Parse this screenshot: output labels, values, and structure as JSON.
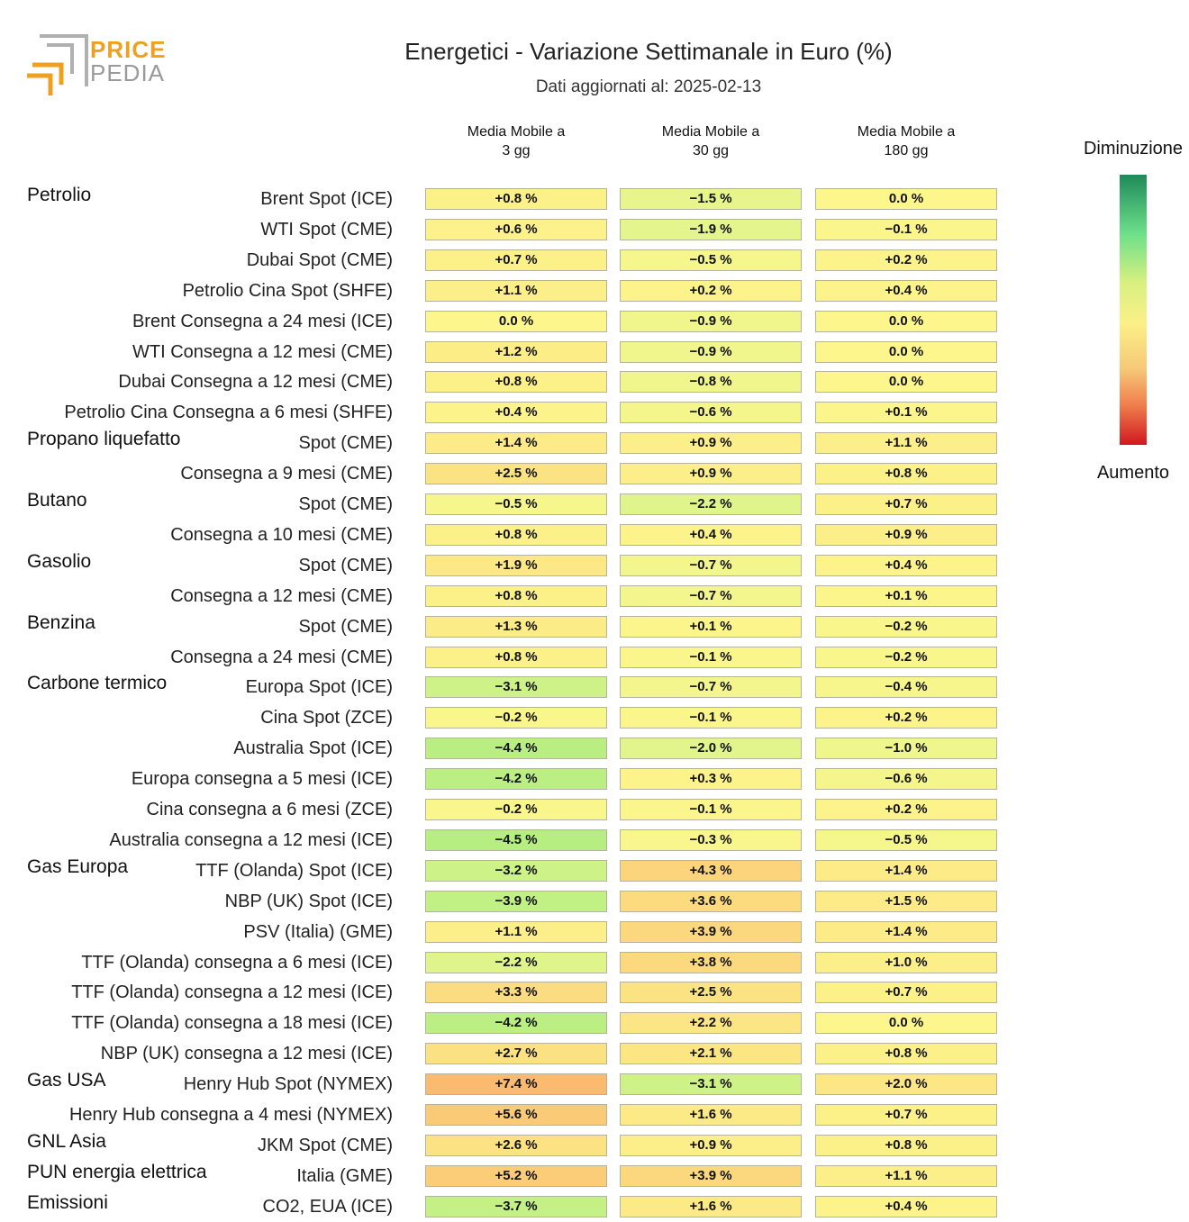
{
  "brand": {
    "line1": "PRICE",
    "line2": "PEDIA"
  },
  "header": {
    "title": "Energetici - Variazione Settimanale in Euro (%)",
    "subtitle": "Dati aggiornati al: 2025-02-13"
  },
  "columns": [
    "Media Mobile a\n3 gg",
    "Media Mobile a\n30 gg",
    "Media Mobile a\n180 gg"
  ],
  "legend": {
    "top": "Diminuzione",
    "bottom": "Aumento"
  },
  "colors": {
    "decrease_strong": "#1e8a5a",
    "neutral": "#fbf088",
    "increase_strong": "#d01820"
  },
  "chart_data": {
    "type": "heatmap",
    "title": "Energetici - Variazione Settimanale in Euro (%)",
    "unit": "%",
    "columns": [
      "Media Mobile a 3 gg",
      "Media Mobile a 30 gg",
      "Media Mobile a 180 gg"
    ],
    "rows": [
      {
        "group": "Petrolio",
        "label": "Brent Spot (ICE)",
        "values": [
          0.8,
          -1.5,
          0.0
        ]
      },
      {
        "group": "",
        "label": "WTI Spot (CME)",
        "values": [
          0.6,
          -1.9,
          -0.1
        ]
      },
      {
        "group": "",
        "label": "Dubai Spot (CME)",
        "values": [
          0.7,
          -0.5,
          0.2
        ]
      },
      {
        "group": "",
        "label": "Petrolio Cina Spot (SHFE)",
        "values": [
          1.1,
          0.2,
          0.4
        ]
      },
      {
        "group": "",
        "label": "Brent Consegna a 24 mesi (ICE)",
        "values": [
          0.0,
          -0.9,
          0.0
        ]
      },
      {
        "group": "",
        "label": "WTI Consegna a 12 mesi (CME)",
        "values": [
          1.2,
          -0.9,
          0.0
        ]
      },
      {
        "group": "",
        "label": "Dubai Consegna a 12 mesi (CME)",
        "values": [
          0.8,
          -0.8,
          0.0
        ]
      },
      {
        "group": "",
        "label": "Petrolio Cina Consegna a 6 mesi (SHFE)",
        "values": [
          0.4,
          -0.6,
          0.1
        ]
      },
      {
        "group": "Propano liquefatto",
        "label": "Spot (CME)",
        "values": [
          1.4,
          0.9,
          1.1
        ]
      },
      {
        "group": "",
        "label": "Consegna a 9 mesi (CME)",
        "values": [
          2.5,
          0.9,
          0.8
        ]
      },
      {
        "group": "Butano",
        "label": "Spot (CME)",
        "values": [
          -0.5,
          -2.2,
          0.7
        ]
      },
      {
        "group": "",
        "label": "Consegna a 10 mesi (CME)",
        "values": [
          0.8,
          0.4,
          0.9
        ]
      },
      {
        "group": "Gasolio",
        "label": "Spot (CME)",
        "values": [
          1.9,
          -0.7,
          0.4
        ]
      },
      {
        "group": "",
        "label": "Consegna a 12 mesi (CME)",
        "values": [
          0.8,
          -0.7,
          0.1
        ]
      },
      {
        "group": "Benzina",
        "label": "Spot (CME)",
        "values": [
          1.3,
          0.1,
          -0.2
        ]
      },
      {
        "group": "",
        "label": "Consegna a 24 mesi (CME)",
        "values": [
          0.8,
          -0.1,
          -0.2
        ]
      },
      {
        "group": "Carbone termico",
        "label": "Europa Spot (ICE)",
        "values": [
          -3.1,
          -0.7,
          -0.4
        ]
      },
      {
        "group": "",
        "label": "Cina Spot (ZCE)",
        "values": [
          -0.2,
          -0.1,
          0.2
        ]
      },
      {
        "group": "",
        "label": "Australia Spot (ICE)",
        "values": [
          -4.4,
          -2.0,
          -1.0
        ]
      },
      {
        "group": "",
        "label": "Europa consegna a 5 mesi (ICE)",
        "values": [
          -4.2,
          0.3,
          -0.6
        ]
      },
      {
        "group": "",
        "label": "Cina consegna a 6 mesi (ZCE)",
        "values": [
          -0.2,
          -0.1,
          0.2
        ]
      },
      {
        "group": "",
        "label": "Australia consegna a 12 mesi (ICE)",
        "values": [
          -4.5,
          -0.3,
          -0.5
        ]
      },
      {
        "group": "Gas Europa",
        "label": "TTF (Olanda) Spot (ICE)",
        "values": [
          -3.2,
          4.3,
          1.4
        ]
      },
      {
        "group": "",
        "label": "NBP (UK) Spot (ICE)",
        "values": [
          -3.9,
          3.6,
          1.5
        ]
      },
      {
        "group": "",
        "label": "PSV (Italia) (GME)",
        "values": [
          1.1,
          3.9,
          1.4
        ]
      },
      {
        "group": "",
        "label": "TTF (Olanda) consegna a 6 mesi (ICE)",
        "values": [
          -2.2,
          3.8,
          1.0
        ]
      },
      {
        "group": "",
        "label": "TTF (Olanda) consegna a 12 mesi (ICE)",
        "values": [
          3.3,
          2.5,
          0.7
        ]
      },
      {
        "group": "",
        "label": "TTF (Olanda) consegna a 18 mesi (ICE)",
        "values": [
          -4.2,
          2.2,
          0.0
        ]
      },
      {
        "group": "",
        "label": "NBP (UK) consegna a 12 mesi (ICE)",
        "values": [
          2.7,
          2.1,
          0.8
        ]
      },
      {
        "group": "Gas USA",
        "label": "Henry Hub Spot (NYMEX)",
        "values": [
          7.4,
          -3.1,
          2.0
        ]
      },
      {
        "group": "",
        "label": "Henry Hub consegna a 4 mesi (NYMEX)",
        "values": [
          5.6,
          1.6,
          0.7
        ]
      },
      {
        "group": "GNL Asia",
        "label": "JKM Spot (CME)",
        "values": [
          2.6,
          0.9,
          0.8
        ]
      },
      {
        "group": "PUN energia elettrica",
        "label": "Italia (GME)",
        "values": [
          5.2,
          3.9,
          1.1
        ]
      },
      {
        "group": "Emissioni",
        "label": "CO2, EUA (ICE)",
        "values": [
          -3.7,
          1.6,
          0.4
        ]
      }
    ]
  }
}
